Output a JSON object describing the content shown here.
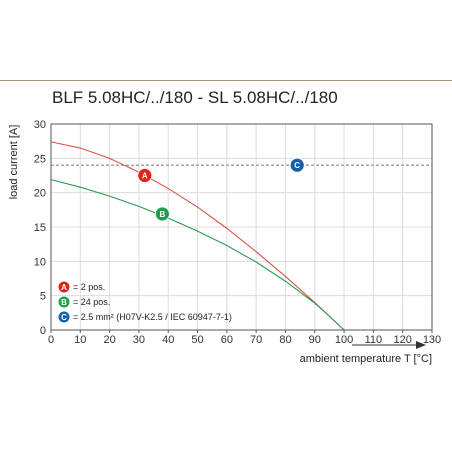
{
  "page": {
    "title": "BLF 5.08HC/../180 - SL 5.08HC/../180"
  },
  "chart_data": {
    "type": "line",
    "title": "BLF 5.08HC/../180 - SL 5.08HC/../180",
    "xlabel": "ambient temperature T [°C]",
    "ylabel": "load current [A]",
    "xlim": [
      0,
      130
    ],
    "ylim": [
      0,
      30
    ],
    "xticks": [
      0,
      10,
      20,
      30,
      40,
      50,
      60,
      70,
      80,
      90,
      100,
      110,
      120,
      130
    ],
    "yticks": [
      0,
      5,
      10,
      15,
      20,
      25,
      30
    ],
    "grid": true,
    "legend_position": "bottom-left",
    "series": [
      {
        "marker_label": "A",
        "legend": "= 2 pos.",
        "color": "#d9534a",
        "marker_color": "#e2231a",
        "points": [
          [
            0,
            27.4
          ],
          [
            10,
            26.5
          ],
          [
            20,
            25.0
          ],
          [
            30,
            23.0
          ],
          [
            40,
            20.6
          ],
          [
            50,
            17.9
          ],
          [
            60,
            14.8
          ],
          [
            70,
            11.4
          ],
          [
            80,
            7.8
          ],
          [
            90,
            4.0
          ],
          [
            95,
            2.0
          ],
          [
            100,
            0
          ]
        ],
        "marker_at": [
          32,
          22.5
        ]
      },
      {
        "marker_label": "B",
        "legend": "= 24 pos.",
        "color": "#2a9a55",
        "marker_color": "#1aa14a",
        "points": [
          [
            0,
            21.9
          ],
          [
            10,
            20.8
          ],
          [
            20,
            19.5
          ],
          [
            30,
            18.0
          ],
          [
            40,
            16.3
          ],
          [
            50,
            14.4
          ],
          [
            60,
            12.3
          ],
          [
            70,
            9.9
          ],
          [
            80,
            7.1
          ],
          [
            90,
            3.9
          ],
          [
            95,
            2.0
          ],
          [
            100,
            0
          ]
        ],
        "marker_at": [
          38,
          16.9
        ]
      },
      {
        "marker_label": "C",
        "legend": "= 2.5 mm² (H07V-K2.5 / IEC 60947-7-1)",
        "color": "#888888",
        "marker_color": "#1560a8",
        "style": "dashed",
        "points": [
          [
            0,
            24
          ],
          [
            130,
            24
          ]
        ],
        "marker_at": [
          84,
          24
        ]
      }
    ]
  }
}
